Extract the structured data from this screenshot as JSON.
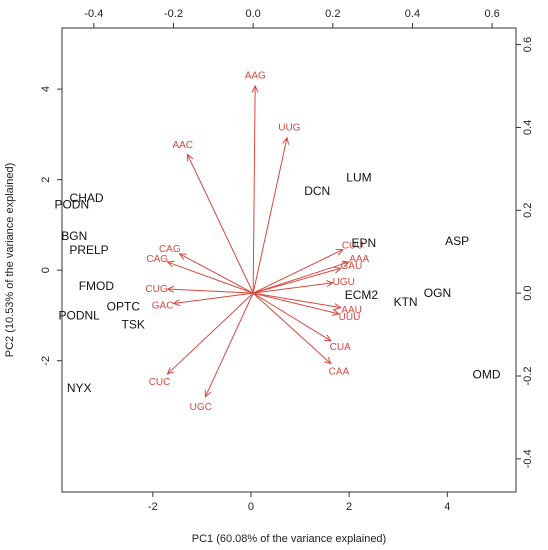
{
  "chart_data": {
    "type": "scatter",
    "subtype": "biplot",
    "title": "",
    "xlabel": "PC1 (60.08% of the variance explained)",
    "ylabel": "PC2 (10.53% of the variance explained)",
    "xlim": [
      -3.85,
      5.4
    ],
    "ylim": [
      -4.9,
      5.35
    ],
    "x_ticks": [
      -2,
      0,
      2,
      4
    ],
    "y_ticks": [
      -2,
      0,
      2,
      4
    ],
    "top_xlim": [
      -0.48,
      0.66
    ],
    "right_ylim": [
      -0.48,
      0.64
    ],
    "top_ticks": [
      -0.4,
      -0.2,
      0.0,
      0.2,
      0.4,
      0.6
    ],
    "right_ticks": [
      -0.4,
      -0.2,
      0.0,
      0.2,
      0.4,
      0.6
    ],
    "arrow_color": "#d9483f",
    "observation_color": "#111111",
    "grid": false,
    "observations": [
      {
        "label": "NYX",
        "x": -3.5,
        "y": -2.6
      },
      {
        "label": "PODNL",
        "x": -3.5,
        "y": -1.0
      },
      {
        "label": "TSK",
        "x": -2.4,
        "y": -1.2
      },
      {
        "label": "OPTC",
        "x": -2.6,
        "y": -0.8
      },
      {
        "label": "FMOD",
        "x": -3.15,
        "y": -0.35
      },
      {
        "label": "PRELP",
        "x": -3.3,
        "y": 0.45
      },
      {
        "label": "BGN",
        "x": -3.6,
        "y": 0.75
      },
      {
        "label": "PODN",
        "x": -3.65,
        "y": 1.45
      },
      {
        "label": "CHAD",
        "x": -3.35,
        "y": 1.6
      },
      {
        "label": "DCN",
        "x": 1.35,
        "y": 1.75
      },
      {
        "label": "LUM",
        "x": 2.2,
        "y": 2.05
      },
      {
        "label": "EPN",
        "x": 2.3,
        "y": 0.6
      },
      {
        "label": "ECM2",
        "x": 2.25,
        "y": -0.55
      },
      {
        "label": "KTN",
        "x": 3.15,
        "y": -0.7
      },
      {
        "label": "OGN",
        "x": 3.8,
        "y": -0.5
      },
      {
        "label": "ASP",
        "x": 4.2,
        "y": 0.65
      },
      {
        "label": "OMD",
        "x": 4.8,
        "y": -2.3
      }
    ],
    "loadings": [
      {
        "label": "AAG",
        "x": 0.005,
        "y": 0.5
      },
      {
        "label": "UUG",
        "x": 0.085,
        "y": 0.375
      },
      {
        "label": "AAC",
        "x": -0.165,
        "y": 0.335
      },
      {
        "label": "CAG",
        "x": -0.185,
        "y": 0.095
      },
      {
        "label": "CAG",
        "x": -0.215,
        "y": 0.075
      },
      {
        "label": "CUG",
        "x": -0.215,
        "y": 0.01
      },
      {
        "label": "GAC",
        "x": -0.2,
        "y": -0.025
      },
      {
        "label": "CUC",
        "x": -0.215,
        "y": -0.195
      },
      {
        "label": "UGC",
        "x": -0.12,
        "y": -0.25
      },
      {
        "label": "CUU",
        "x": 0.225,
        "y": 0.105
      },
      {
        "label": "AAA",
        "x": 0.24,
        "y": 0.075
      },
      {
        "label": "GAU",
        "x": 0.22,
        "y": 0.06
      },
      {
        "label": "UGU",
        "x": 0.2,
        "y": 0.025
      },
      {
        "label": "AAU",
        "x": 0.22,
        "y": -0.035
      },
      {
        "label": "UUU",
        "x": 0.215,
        "y": -0.05
      },
      {
        "label": "CUA",
        "x": 0.195,
        "y": -0.115
      },
      {
        "label": "CAA",
        "x": 0.195,
        "y": -0.17
      }
    ]
  }
}
